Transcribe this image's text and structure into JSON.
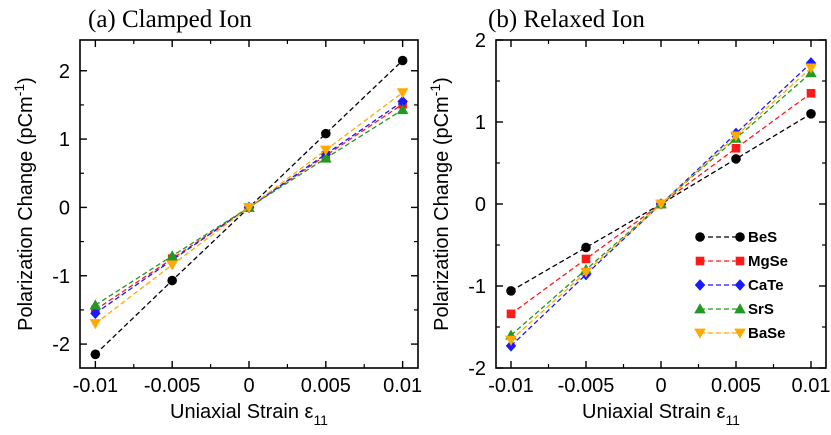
{
  "chart_data": [
    {
      "type": "line",
      "title": "(a) Clamped Ion",
      "xlabel": "Uniaxial Strain ε",
      "xlabel_sub": "11",
      "ylabel": "Polarization Change (pCm",
      "ylabel_sup": "-1",
      "ylabel_close": ")",
      "x": [
        -0.01,
        -0.005,
        0,
        0.005,
        0.01
      ],
      "xlim": [
        -0.011,
        0.011
      ],
      "ylim": [
        -2.35,
        2.45
      ],
      "xticks": [
        "-0.01",
        "-0.005",
        "0",
        "0.005",
        "0.01"
      ],
      "xtick_values": [
        -0.01,
        -0.005,
        0,
        0.005,
        0.01
      ],
      "yticks": [
        "-2",
        "-1",
        "0",
        "1",
        "2"
      ],
      "ytick_values": [
        -2,
        -1,
        0,
        1,
        2
      ],
      "grid": false,
      "legend": "none",
      "series": [
        {
          "name": "BeS",
          "values": [
            -2.15,
            -1.07,
            0,
            1.08,
            2.15
          ]
        },
        {
          "name": "MgSe",
          "values": [
            -1.5,
            -0.75,
            0,
            0.76,
            1.51
          ]
        },
        {
          "name": "CaTe",
          "values": [
            -1.55,
            -0.77,
            0,
            0.78,
            1.55
          ]
        },
        {
          "name": "SrS",
          "values": [
            -1.43,
            -0.71,
            0,
            0.72,
            1.43
          ]
        },
        {
          "name": "BaSe",
          "values": [
            -1.7,
            -0.84,
            0,
            0.84,
            1.68
          ]
        }
      ]
    },
    {
      "type": "line",
      "title": "(b) Relaxed Ion",
      "xlabel": "Uniaxial Strain ε",
      "xlabel_sub": "11",
      "ylabel": "Polarization Change (pCm",
      "ylabel_sup": "-1",
      "ylabel_close": ")",
      "x": [
        -0.01,
        -0.005,
        0,
        0.005,
        0.01
      ],
      "xlim": [
        -0.011,
        0.011
      ],
      "ylim": [
        -2,
        2
      ],
      "xticks": [
        "-0.01",
        "-0.005",
        "0",
        "0.005",
        "0.01"
      ],
      "xtick_values": [
        -0.01,
        -0.005,
        0,
        0.005,
        0.01
      ],
      "yticks": [
        "-2",
        "-1",
        "0",
        "1",
        "2"
      ],
      "ytick_values": [
        -2,
        -1,
        0,
        1,
        2
      ],
      "grid": false,
      "legend": "bottom-right",
      "series": [
        {
          "name": "BeS",
          "values": [
            -1.06,
            -0.53,
            0,
            0.55,
            1.1
          ]
        },
        {
          "name": "MgSe",
          "values": [
            -1.34,
            -0.67,
            0,
            0.68,
            1.35
          ]
        },
        {
          "name": "CaTe",
          "values": [
            -1.73,
            -0.86,
            0,
            0.86,
            1.72
          ]
        },
        {
          "name": "SrS",
          "values": [
            -1.6,
            -0.8,
            0,
            0.8,
            1.6
          ]
        },
        {
          "name": "BaSe",
          "values": [
            -1.66,
            -0.83,
            0,
            0.83,
            1.66
          ]
        }
      ]
    }
  ],
  "styles": {
    "BeS": {
      "color": "#000000",
      "marker": "circle"
    },
    "MgSe": {
      "color": "#ff1a1a",
      "marker": "square"
    },
    "CaTe": {
      "color": "#1a1aff",
      "marker": "diamond"
    },
    "SrS": {
      "color": "#229922",
      "marker": "triangle-up"
    },
    "BaSe": {
      "color": "#ffaa00",
      "marker": "triangle-down"
    }
  }
}
